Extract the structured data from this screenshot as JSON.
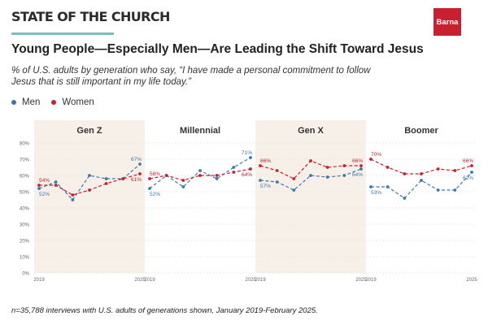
{
  "header": {
    "brand": "STATE OF THE CHURCH",
    "logo_text": "Barna",
    "accent_color": "#7fbdb8",
    "logo_color": "#c8202e"
  },
  "title": "Young People—Especially Men—Are Leading the Shift Toward Jesus",
  "subtitle": "% of U.S. adults by generation who say, “I have made a personal commitment to follow Jesus that is still important in my life today.”",
  "legend": {
    "men": "Men",
    "women": "Women"
  },
  "colors": {
    "men": "#3d78ad",
    "women": "#c8202e",
    "shade": "#f7f0e8",
    "grid": "#e3e3e3"
  },
  "footnote": "n=35,788 interviews with U.S. adults of generations shown, January 2019-February 2025.",
  "chart_data": {
    "type": "line",
    "y_ticks": [
      "0%",
      "10%",
      "20%",
      "30%",
      "40%",
      "50%",
      "60%",
      "70%",
      "80%"
    ],
    "ylim": [
      0,
      80
    ],
    "x_tick_labels": [
      "2019",
      "2025"
    ],
    "panels": [
      {
        "title": "Gen Z",
        "shaded": true,
        "series": [
          {
            "name": "Men",
            "values": [
              52,
              56,
              45,
              60,
              58,
              58,
              67
            ],
            "start_label": "52%",
            "end_label": "67%"
          },
          {
            "name": "Women",
            "values": [
              54,
              54,
              48,
              51,
              55,
              58,
              61
            ],
            "start_label": "54%",
            "end_label": "61%"
          }
        ]
      },
      {
        "title": "Millennial",
        "shaded": false,
        "series": [
          {
            "name": "Men",
            "values": [
              52,
              60,
              53,
              63,
              58,
              65,
              71
            ],
            "start_label": "52%",
            "end_label": "71%"
          },
          {
            "name": "Women",
            "values": [
              58,
              60,
              57,
              60,
              60,
              62,
              64
            ],
            "start_label": "58%",
            "end_label": "64%"
          }
        ]
      },
      {
        "title": "Gen X",
        "shaded": true,
        "series": [
          {
            "name": "Men",
            "values": [
              57,
              56,
              51,
              60,
              59,
              60,
              64
            ],
            "start_label": "57%",
            "end_label": "64%"
          },
          {
            "name": "Women",
            "values": [
              66,
              63,
              58,
              69,
              65,
              66,
              66
            ],
            "start_label": "66%",
            "end_label": "66%"
          }
        ]
      },
      {
        "title": "Boomer",
        "shaded": false,
        "series": [
          {
            "name": "Men",
            "values": [
              53,
              53,
              46,
              57,
              51,
              51,
              62
            ],
            "start_label": "53%",
            "end_label": "62%"
          },
          {
            "name": "Women",
            "values": [
              70,
              65,
              61,
              61,
              64,
              63,
              66
            ],
            "start_label": "70%",
            "end_label": "66%"
          }
        ]
      }
    ]
  }
}
